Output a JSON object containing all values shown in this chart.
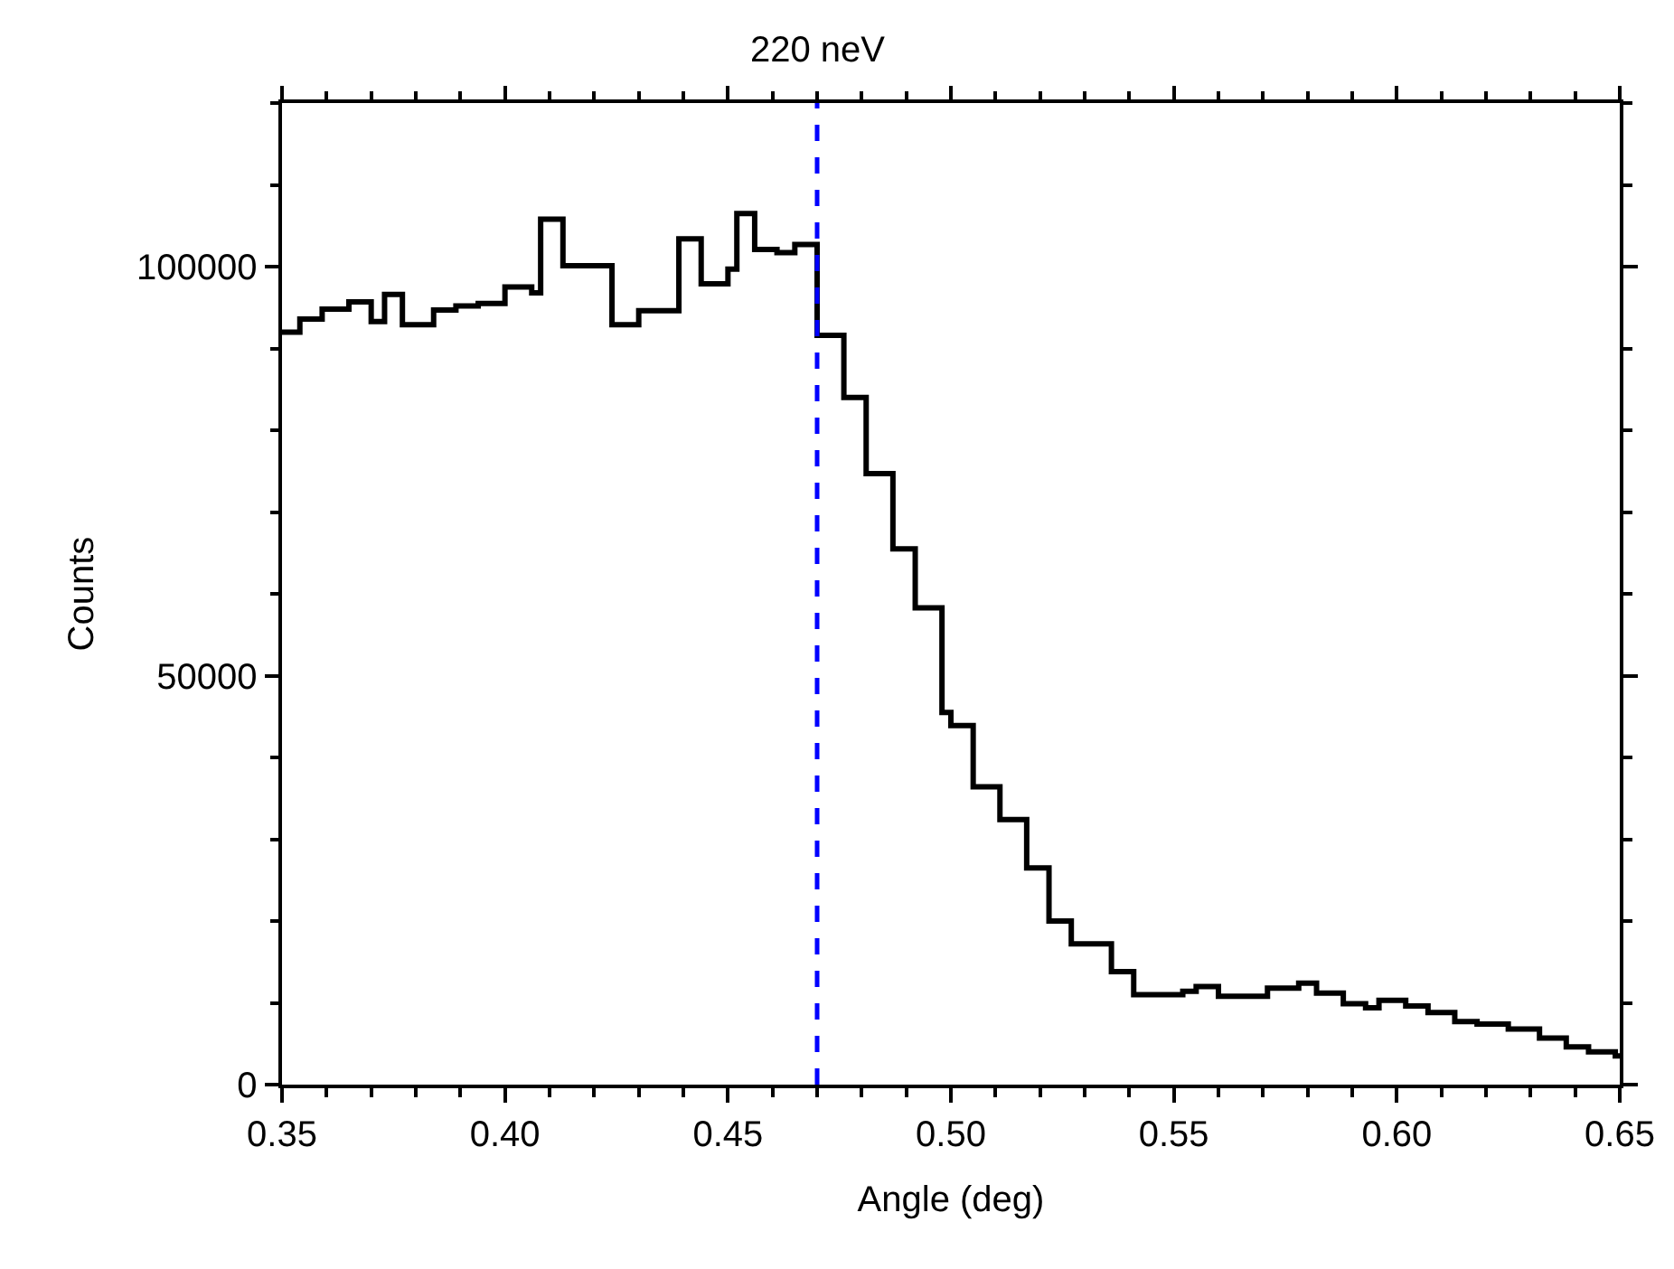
{
  "chart_data": {
    "type": "step",
    "xlabel": "Angle (deg)",
    "ylabel": "Counts",
    "x": [
      0.35,
      0.354,
      0.359,
      0.365,
      0.37,
      0.373,
      0.377,
      0.384,
      0.389,
      0.394,
      0.4,
      0.406,
      0.408,
      0.413,
      0.424,
      0.43,
      0.439,
      0.444,
      0.45,
      0.452,
      0.456,
      0.461,
      0.465,
      0.47,
      0.476,
      0.481,
      0.487,
      0.492,
      0.498,
      0.5,
      0.505,
      0.511,
      0.517,
      0.522,
      0.527,
      0.536,
      0.541,
      0.552,
      0.555,
      0.56,
      0.571,
      0.578,
      0.582,
      0.588,
      0.593,
      0.596,
      0.602,
      0.607,
      0.613,
      0.618,
      0.625,
      0.632,
      0.638,
      0.643,
      0.649,
      0.65
    ],
    "series": [
      {
        "color": "#000000",
        "values": [
          92000,
          93600,
          94800,
          95700,
          93300,
          96600,
          92900,
          94700,
          95200,
          95500,
          97500,
          96800,
          105800,
          100100,
          92900,
          94600,
          103400,
          97900,
          99700,
          106500,
          102100,
          101700,
          102700,
          91600,
          84000,
          74700,
          65500,
          58300,
          45500,
          43900,
          36400,
          32400,
          26500,
          20000,
          17200,
          13800,
          11000,
          11400,
          12000,
          10800,
          11800,
          12400,
          11200,
          9900,
          9400,
          10300,
          9600,
          8800,
          7700,
          7400,
          6800,
          5700,
          4600,
          4000,
          3500,
          3500
        ]
      }
    ],
    "xlim": [
      0.35,
      0.65
    ],
    "xticks": [
      {
        "value": 0.35,
        "label": "0.35"
      },
      {
        "value": 0.4,
        "label": "0.40"
      },
      {
        "value": 0.45,
        "label": "0.45"
      },
      {
        "value": 0.5,
        "label": "0.50"
      },
      {
        "value": 0.55,
        "label": "0.55"
      },
      {
        "value": 0.6,
        "label": "0.60"
      },
      {
        "value": 0.65,
        "label": "0.65"
      }
    ],
    "ylim": [
      0,
      120000
    ],
    "yticks": [
      0,
      50000,
      100000
    ],
    "ref_lines": [
      {
        "axis": "x",
        "value": 0.47,
        "label": "220 neV",
        "color": "#0000ff",
        "line_style": "dashed"
      }
    ],
    "grid": false,
    "marker": "none",
    "line_style": "solid"
  }
}
